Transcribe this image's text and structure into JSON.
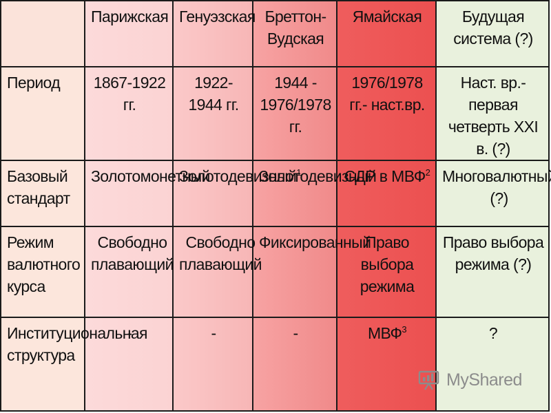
{
  "table": {
    "corner": "",
    "columns": [
      "Парижская",
      "Генуэзская",
      "Бреттон-Вудская",
      "Ямайская",
      "Будущая система (?)"
    ],
    "rows": [
      {
        "label": "Период",
        "cells": [
          "1867-1922 гг.",
          "1922-1944 гг.",
          "1944 - 1976/1978 гг.",
          "1976/1978 гг.- наст.вр.",
          "Наст. вр.- первая четверть XXI в. (?)"
        ]
      },
      {
        "label": "Базовый стандарт",
        "cells": [
          "Золотомонетный",
          "Золотодевизный",
          "Золотодевизный",
          "СДР в МВФ",
          "Многовалютный (?)"
        ],
        "footnotes": [
          "",
          "1",
          "",
          "2",
          ""
        ]
      },
      {
        "label": "Режим валютного курса",
        "cells": [
          "Свободно плавающий",
          "Свободно плавающий",
          "Фиксированный",
          "Право выбора режима",
          "Право выбора режима (?)"
        ]
      },
      {
        "label": "Институциональная структура",
        "cells": [
          "-",
          "-",
          "-",
          "МВФ",
          "?"
        ],
        "footnotes": [
          "",
          "",
          "",
          "3",
          ""
        ]
      }
    ]
  },
  "watermark": {
    "text": "MyShared",
    "icon": "presentation-screen-icon"
  }
}
